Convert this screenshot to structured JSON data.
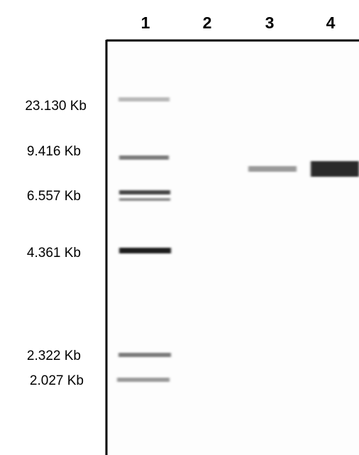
{
  "lanes": [
    "1",
    "2",
    "3",
    "4"
  ],
  "markers": [
    "23.130 Kb",
    "9.416 Kb",
    "6.557 Kb",
    "4.361 Kb",
    "2.322 Kb",
    "2.027 Kb"
  ]
}
